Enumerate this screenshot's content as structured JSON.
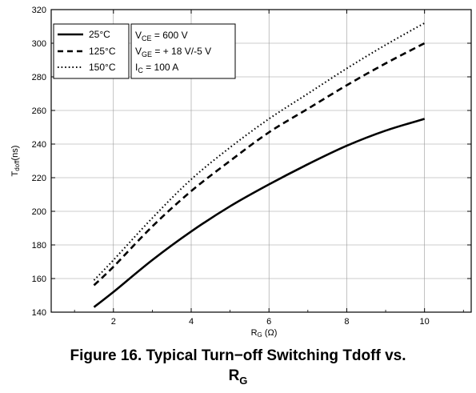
{
  "chart_data": {
    "type": "line",
    "title": "",
    "xlabel": {
      "main": "R",
      "sub": "G",
      "unit": " (Ω)"
    },
    "ylabel": {
      "main": "T",
      "sub": "doff",
      "unit": "(ns)"
    },
    "xlim": [
      0.4,
      11.2
    ],
    "ylim": [
      140,
      320
    ],
    "xticks": [
      2,
      4,
      6,
      8,
      10
    ],
    "yticks": [
      140,
      160,
      180,
      200,
      220,
      240,
      260,
      280,
      300,
      320
    ],
    "grid": true,
    "legend_position": "top-left",
    "series": [
      {
        "name": "25°C",
        "style": "solid",
        "x": [
          1.5,
          2,
          3,
          4,
          5,
          6,
          7,
          8,
          9,
          10
        ],
        "y": [
          143,
          152,
          171,
          188,
          203,
          216,
          228,
          239,
          248,
          255
        ]
      },
      {
        "name": "125°C",
        "style": "dashed",
        "x": [
          1.5,
          2,
          3,
          4,
          5,
          6,
          7,
          8,
          9,
          10
        ],
        "y": [
          156,
          167,
          191,
          212,
          230,
          247,
          261,
          275,
          288,
          300
        ]
      },
      {
        "name": "150°C",
        "style": "dotted",
        "x": [
          1.5,
          2,
          3,
          4,
          5,
          6,
          7,
          8,
          9,
          10
        ],
        "y": [
          159,
          171,
          196,
          219,
          238,
          255,
          270,
          285,
          299,
          312
        ]
      }
    ],
    "annotation": {
      "lines": [
        {
          "main": "V",
          "sub": "CE",
          "rest": " = 600 V"
        },
        {
          "main": "V",
          "sub": "GE",
          "rest": " = + 18 V/-5 V"
        },
        {
          "main": "I",
          "sub": "C",
          "rest": " = 100 A"
        }
      ]
    }
  },
  "caption": {
    "line1": "Figure 16. Typical Turn−off Switching Tdoff vs.",
    "line2_main": "R",
    "line2_sub": "G"
  }
}
